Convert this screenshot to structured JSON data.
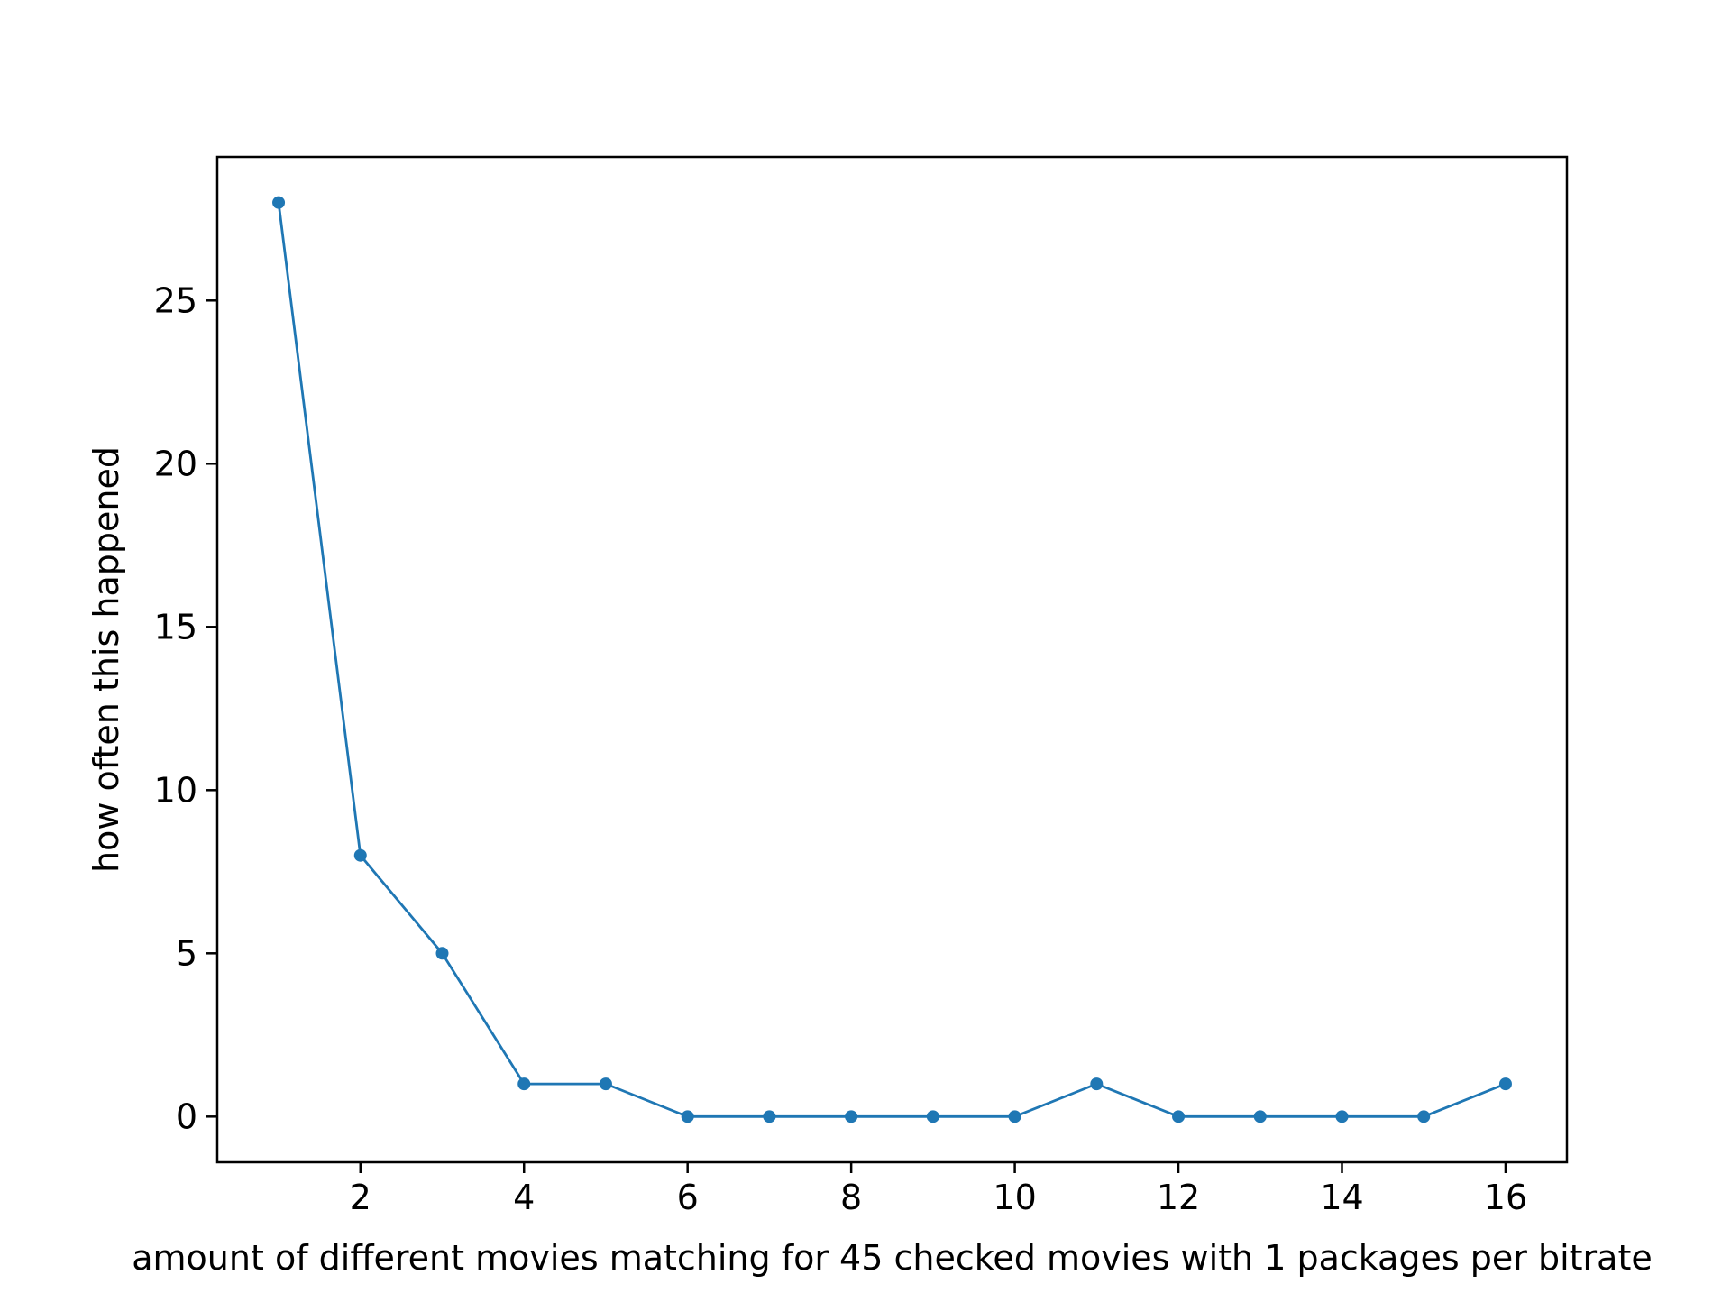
{
  "chart_data": {
    "type": "line",
    "title": "",
    "xlabel": "amount of different movies matching for 45 checked movies with 1 packages per bitrate",
    "ylabel": "how often this happened",
    "x": [
      1,
      2,
      3,
      4,
      5,
      6,
      7,
      8,
      9,
      10,
      11,
      12,
      13,
      14,
      15,
      16
    ],
    "series": [
      {
        "values": [
          28,
          8,
          5,
          1,
          1,
          0,
          0,
          0,
          0,
          0,
          1,
          0,
          0,
          0,
          0,
          1
        ],
        "color": "#1f77b4",
        "marker": "dot"
      }
    ],
    "xlim": [
      0.25,
      16.75
    ],
    "ylim": [
      -1.4,
      29.4
    ],
    "xticks": [
      2,
      4,
      6,
      8,
      10,
      12,
      14,
      16
    ],
    "yticks": [
      0,
      5,
      10,
      15,
      20,
      25
    ],
    "grid": false,
    "legend": "none"
  }
}
